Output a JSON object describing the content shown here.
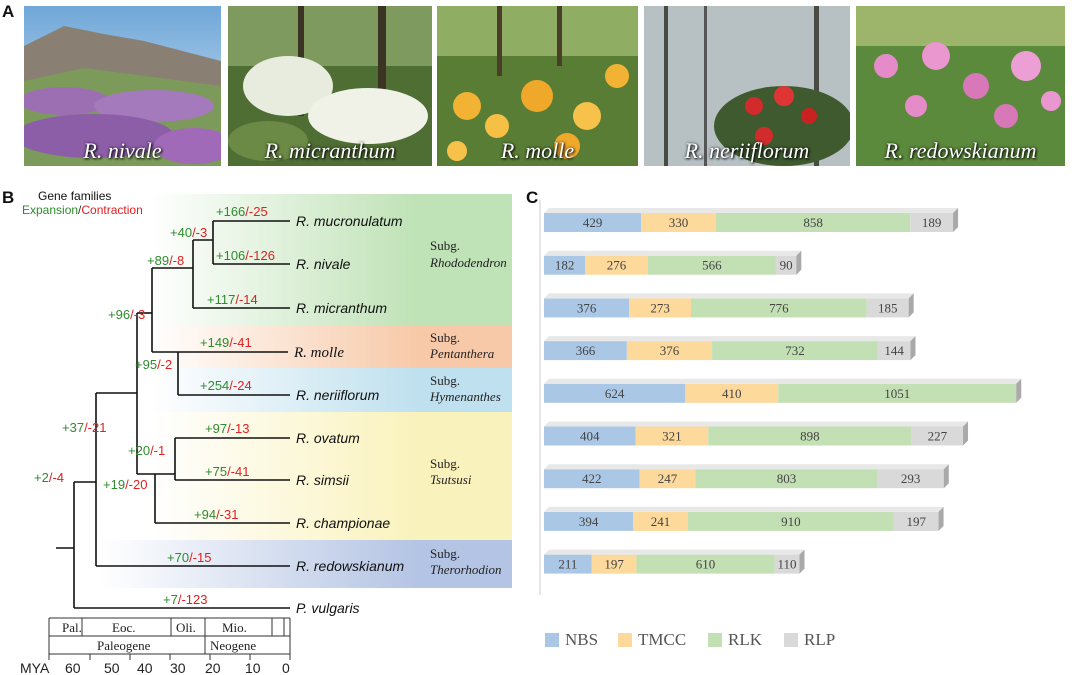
{
  "panel_a": {
    "letter": "A",
    "photos": [
      {
        "caption": "R. nivale"
      },
      {
        "caption": "R. micranthum"
      },
      {
        "caption": "R. molle"
      },
      {
        "caption": "R. neriiflorum"
      },
      {
        "caption": "R. redowskianum"
      }
    ]
  },
  "panel_b": {
    "letter": "B",
    "legend_title": "Gene families",
    "legend_expansion": "Expansion",
    "legend_sep": "/",
    "legend_contraction": "Contraction",
    "taxa": [
      "R. mucronulatum",
      "R. nivale",
      "R. micranthum",
      "R. molle",
      "R. neriiflorum",
      "R. ovatum",
      "R. simsii",
      "R. championae",
      "R. redowskianum",
      "P. vulgaris"
    ],
    "labels": [
      {
        "plus": "+166",
        "minus": "/-25"
      },
      {
        "plus": "+40",
        "minus": "/-3"
      },
      {
        "plus": "+106",
        "minus": "/-126"
      },
      {
        "plus": "+89",
        "minus": "/-8"
      },
      {
        "plus": "+117",
        "minus": "/-14"
      },
      {
        "plus": "+96",
        "minus": "/-3"
      },
      {
        "plus": "+149",
        "minus": "/-41"
      },
      {
        "plus": "+95",
        "minus": "/-2"
      },
      {
        "plus": "+254",
        "minus": "/-24"
      },
      {
        "plus": "+37",
        "minus": "/-21"
      },
      {
        "plus": "+97",
        "minus": "/-13"
      },
      {
        "plus": "+20",
        "minus": "/-1"
      },
      {
        "plus": "+75",
        "minus": "/-41"
      },
      {
        "plus": "+19",
        "minus": "/-20"
      },
      {
        "plus": "+94",
        "minus": "/-31"
      },
      {
        "plus": "+2",
        "minus": "/-4"
      },
      {
        "plus": "+70",
        "minus": "/-15"
      },
      {
        "plus": "+7",
        "minus": "/-123"
      }
    ],
    "subgenera": [
      {
        "line1": "Subg.",
        "line2": "Rhododendron"
      },
      {
        "line1": "Subg.",
        "line2": "Pentanthera"
      },
      {
        "line1": "Subg.",
        "line2": "Hymenanthes"
      },
      {
        "line1": "Subg.",
        "line2": "Tsutsusi"
      },
      {
        "line1": "Subg.",
        "line2": "Therorhodion"
      }
    ],
    "timescale": {
      "epochs": [
        "Pal.",
        "Eoc.",
        "Oli.",
        "Mio."
      ],
      "periods": [
        "Paleogene",
        "Neogene"
      ],
      "axis_label": "MYA",
      "ticks": [
        "60",
        "50",
        "40",
        "30",
        "20",
        "10",
        "0"
      ]
    }
  },
  "panel_c": {
    "letter": "C",
    "colors": {
      "NBS": "#aac8e6",
      "TMCC": "#fdd99b",
      "RLK": "#c3e0b4",
      "RLP": "#d9d9d9"
    },
    "legend": [
      "NBS",
      "TMCC",
      "RLK",
      "RLP"
    ],
    "chart_data": {
      "type": "bar",
      "orientation": "horizontal",
      "stacked": true,
      "categories": [
        "R. mucronulatum",
        "R. nivale",
        "R. micranthum",
        "R. molle",
        "R. neriiflorum",
        "R. ovatum",
        "R. simsii",
        "R. championae",
        "R. redowskianum"
      ],
      "series": [
        {
          "name": "NBS",
          "values": [
            429,
            182,
            376,
            366,
            624,
            404,
            422,
            394,
            211
          ]
        },
        {
          "name": "TMCC",
          "values": [
            330,
            276,
            273,
            376,
            410,
            321,
            247,
            241,
            197
          ]
        },
        {
          "name": "RLK",
          "values": [
            858,
            566,
            776,
            732,
            1051,
            898,
            803,
            910,
            610
          ]
        },
        {
          "name": "RLP",
          "values": [
            189,
            90,
            185,
            144,
            null,
            227,
            293,
            197,
            110
          ]
        }
      ],
      "legend_position": "bottom"
    }
  }
}
